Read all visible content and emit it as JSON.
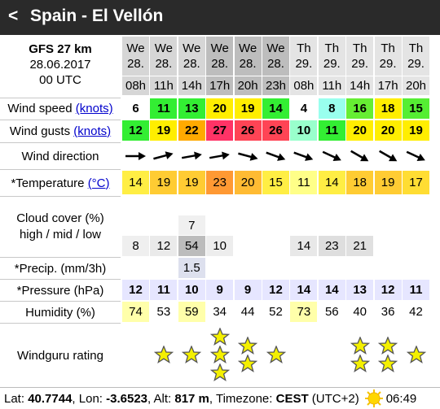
{
  "header": {
    "back": "<",
    "title": "Spain - El Vellón"
  },
  "model": {
    "name": "GFS 27 km",
    "date": "28.06.2017",
    "run": "00 UTC"
  },
  "columns": {
    "days": [
      "We",
      "We",
      "We",
      "We",
      "We",
      "We",
      "Th",
      "Th",
      "Th",
      "Th",
      "Th"
    ],
    "dates": [
      "28.",
      "28.",
      "28.",
      "28.",
      "28.",
      "28.",
      "29.",
      "29.",
      "29.",
      "29.",
      "29."
    ],
    "hours": [
      "08h",
      "11h",
      "14h",
      "17h",
      "20h",
      "23h",
      "08h",
      "11h",
      "14h",
      "17h",
      "20h"
    ],
    "day_colors": [
      "#d6d6d6",
      "#d6d6d6",
      "#d6d6d6",
      "#bdbdbd",
      "#bdbdbd",
      "#bdbdbd",
      "#e4e4e4",
      "#e4e4e4",
      "#e4e4e4",
      "#e4e4e4",
      "#e4e4e4"
    ]
  },
  "rows": {
    "wind_speed": {
      "label": "Wind speed",
      "unit": "(knots)",
      "values": [
        6,
        11,
        13,
        20,
        19,
        14,
        4,
        8,
        16,
        18,
        15
      ],
      "colors": [
        "#ffffff",
        "#33ee33",
        "#33ee33",
        "#ffee00",
        "#ffee00",
        "#33ee33",
        "#ffffff",
        "#99ffee",
        "#66ee33",
        "#ffee00",
        "#55ee33"
      ]
    },
    "wind_gusts": {
      "label": "Wind gusts",
      "unit": "(knots)",
      "values": [
        12,
        19,
        22,
        27,
        26,
        26,
        10,
        11,
        20,
        20,
        19
      ],
      "colors": [
        "#33ee33",
        "#ffee00",
        "#ffaa00",
        "#ff3366",
        "#ff4455",
        "#ff4455",
        "#99ffcc",
        "#33ee33",
        "#ffee00",
        "#ffee00",
        "#ffee00"
      ]
    },
    "wind_direction": {
      "label": "Wind direction",
      "degrees": [
        0,
        -15,
        -10,
        -10,
        15,
        20,
        20,
        25,
        30,
        30,
        25
      ]
    },
    "temperature": {
      "label": "*Temperature",
      "unit": "(°C)",
      "values": [
        14,
        19,
        19,
        23,
        20,
        15,
        11,
        14,
        18,
        19,
        17
      ],
      "colors": [
        "#ffee44",
        "#ffcc33",
        "#ffcc33",
        "#ff9933",
        "#ffbb33",
        "#ffee44",
        "#ffff88",
        "#ffee44",
        "#ffcc33",
        "#ffcc33",
        "#ffdd33"
      ]
    },
    "cloud_cover": {
      "label": "Cloud cover (%)",
      "sublabel": "high / mid / low",
      "high": [
        null,
        null,
        null,
        null,
        null,
        null,
        null,
        null,
        null,
        null,
        null
      ],
      "mid": [
        null,
        null,
        7,
        null,
        null,
        null,
        null,
        null,
        null,
        null,
        null
      ],
      "low": [
        8,
        12,
        54,
        10,
        null,
        null,
        14,
        23,
        21,
        null,
        null
      ]
    },
    "precip": {
      "label": "*Precip. (mm/3h)",
      "values": [
        null,
        null,
        1.5,
        null,
        null,
        null,
        null,
        null,
        null,
        null,
        null
      ]
    },
    "pressure": {
      "label": "*Pressure (hPa)",
      "values": [
        12,
        11,
        10,
        9,
        9,
        12,
        14,
        14,
        13,
        12,
        11
      ],
      "color": "#e6e6ff"
    },
    "humidity": {
      "label": "Humidity (%)",
      "values": [
        74,
        53,
        59,
        34,
        44,
        52,
        73,
        56,
        40,
        36,
        42
      ],
      "colors": [
        "#ffffaa",
        "#ffffff",
        "#ffffaa",
        "#ffffff",
        "#ffffff",
        "#ffffff",
        "#ffffaa",
        "#ffffff",
        "#ffffff",
        "#ffffff",
        "#ffffff"
      ]
    },
    "rating": {
      "label": "Windguru rating",
      "values": [
        0,
        1,
        1,
        3,
        2,
        1,
        0,
        0,
        2,
        2,
        1
      ]
    }
  },
  "footer": {
    "parts": [
      {
        "text": "Lat: ",
        "bold": false
      },
      {
        "text": "40.7744",
        "bold": true
      },
      {
        "text": ", Lon: ",
        "bold": false
      },
      {
        "text": "-3.6523",
        "bold": true
      },
      {
        "text": ", Alt: ",
        "bold": false
      },
      {
        "text": "817 m",
        "bold": true
      },
      {
        "text": ", Timezone: ",
        "bold": false
      },
      {
        "text": "CEST",
        "bold": true
      },
      {
        "text": " (UTC+2)",
        "bold": false
      }
    ],
    "sunrise": "06:49"
  }
}
